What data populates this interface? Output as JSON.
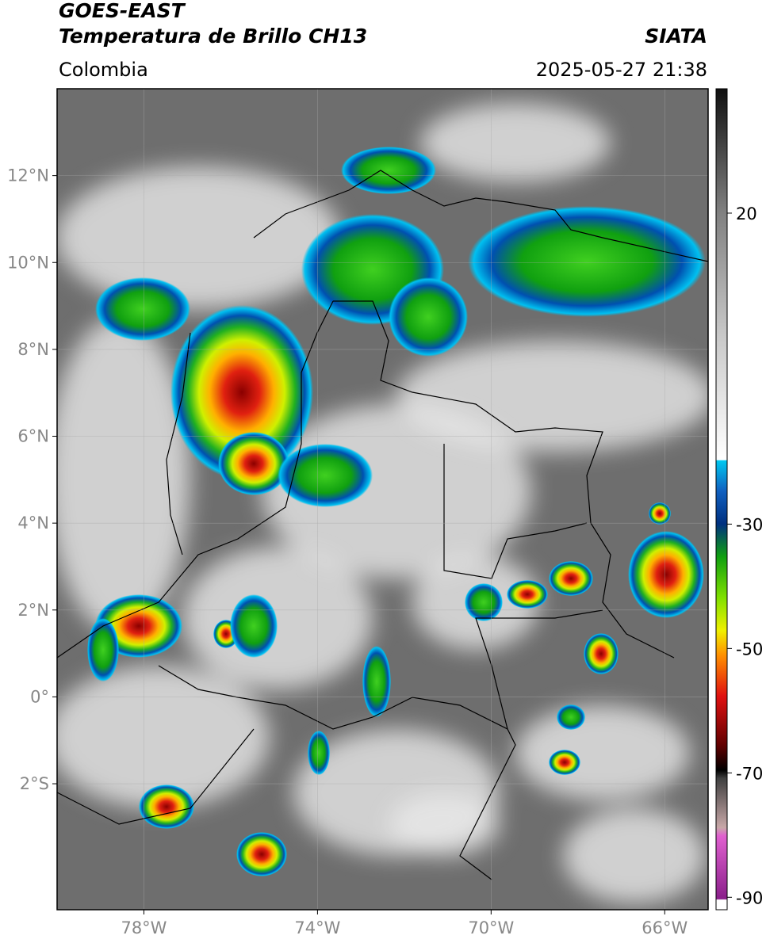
{
  "header": {
    "title": "GOES-EAST",
    "subtitle": "Temperatura de Brillo CH13",
    "source": "SIATA",
    "region": "Colombia",
    "datetime": "2025-05-27 21:38"
  },
  "map": {
    "xlim": [
      -80,
      -65
    ],
    "ylim": [
      -4.9,
      14
    ],
    "xticks": [
      {
        "value": -78,
        "label": "78°W"
      },
      {
        "value": -74,
        "label": "74°W"
      },
      {
        "value": -70,
        "label": "70°W"
      },
      {
        "value": -66,
        "label": "66°W"
      }
    ],
    "yticks": [
      {
        "value": 12,
        "label": "12°N"
      },
      {
        "value": 10,
        "label": "10°N"
      },
      {
        "value": 8,
        "label": "8°N"
      },
      {
        "value": 6,
        "label": "6°N"
      },
      {
        "value": 4,
        "label": "4°N"
      },
      {
        "value": 2,
        "label": "2°N"
      },
      {
        "value": 0,
        "label": "0°"
      },
      {
        "value": -2,
        "label": "2°S"
      }
    ],
    "grid": true
  },
  "colorbar": {
    "lim": [
      -92,
      40
    ],
    "ticks": [
      20,
      -30,
      -50,
      -70,
      -90
    ]
  }
}
